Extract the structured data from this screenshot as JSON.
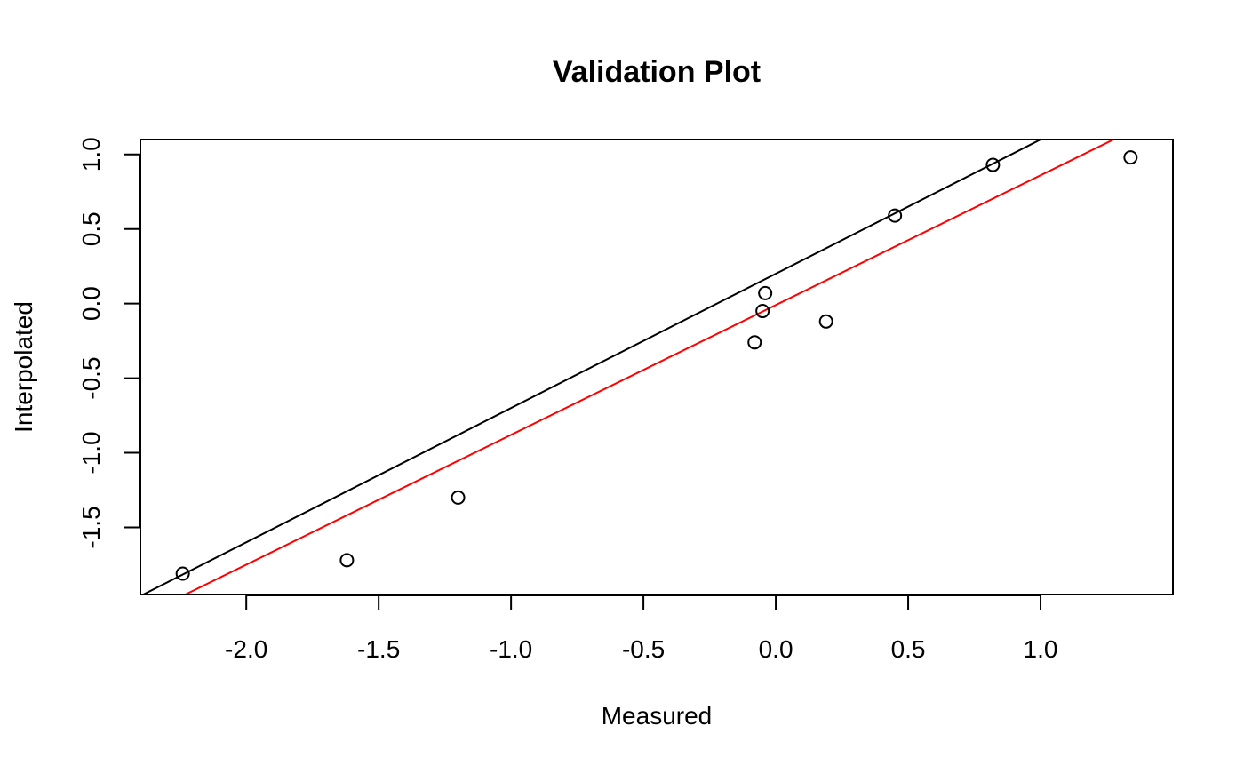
{
  "chart_data": {
    "type": "scatter",
    "title": "Validation Plot",
    "xlabel": "Measured",
    "ylabel": "Interpolated",
    "xlim": [
      -2.4,
      1.5
    ],
    "ylim": [
      -1.95,
      1.1
    ],
    "xticks": [
      -2.0,
      -1.5,
      -1.0,
      -0.5,
      0.0,
      0.5,
      1.0
    ],
    "xtick_labels": [
      "-2.0",
      "-1.5",
      "-1.0",
      "-0.5",
      "0.0",
      "0.5",
      "1.0"
    ],
    "yticks": [
      -1.5,
      -1.0,
      -0.5,
      0.0,
      0.5,
      1.0
    ],
    "ytick_labels": [
      "-1.5",
      "-1.0",
      "-0.5",
      "0.0",
      "0.5",
      "1.0"
    ],
    "grid": false,
    "points": [
      {
        "x": -2.24,
        "y": -1.81
      },
      {
        "x": -1.62,
        "y": -1.72
      },
      {
        "x": -1.2,
        "y": -1.3
      },
      {
        "x": -0.08,
        "y": -0.26
      },
      {
        "x": -0.05,
        "y": -0.05
      },
      {
        "x": -0.04,
        "y": 0.07
      },
      {
        "x": 0.19,
        "y": -0.12
      },
      {
        "x": 0.45,
        "y": 0.59
      },
      {
        "x": 0.82,
        "y": 0.93
      },
      {
        "x": 1.34,
        "y": 0.98
      }
    ],
    "lines": [
      {
        "kind": "fit",
        "color": "#000000",
        "intercept": 0.2,
        "slope": 0.9
      },
      {
        "kind": "reference",
        "color": "#ff0000",
        "intercept": -0.01,
        "slope": 0.87
      }
    ]
  }
}
